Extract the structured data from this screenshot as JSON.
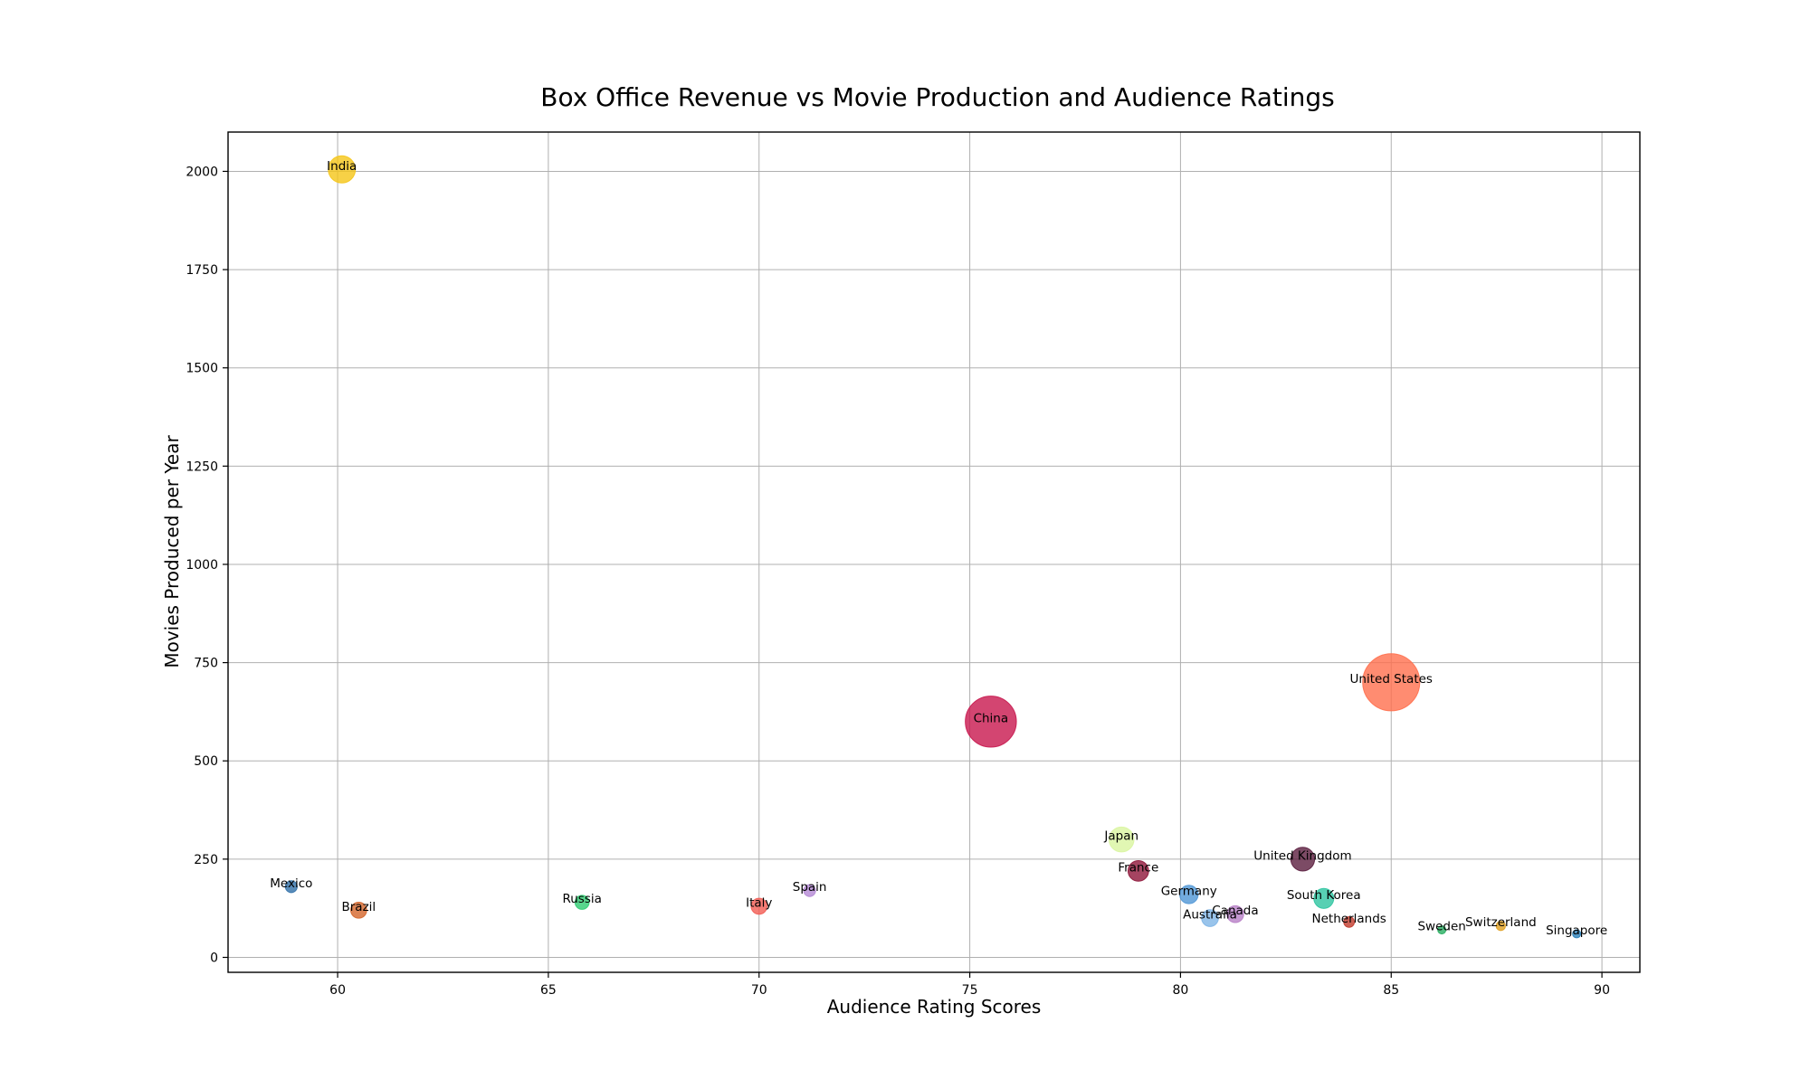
{
  "chart_data": {
    "type": "scatter",
    "title": "Box Office Revenue vs Movie Production and Audience Ratings",
    "xlabel": "Audience Rating Scores",
    "ylabel": "Movies Produced per Year",
    "xlim": [
      57.4,
      90.9
    ],
    "ylim": [
      -38,
      2100
    ],
    "xticks": [
      60,
      65,
      70,
      75,
      80,
      85,
      90
    ],
    "yticks": [
      0,
      250,
      500,
      750,
      1000,
      1250,
      1500,
      1750,
      2000
    ],
    "grid": true,
    "points": [
      {
        "label": "India",
        "x": 60.1,
        "y": 2005,
        "size_value": 2.6,
        "color": "#f5c518"
      },
      {
        "label": "United States",
        "x": 85.0,
        "y": 700,
        "size_value": 11.5,
        "color": "#ff6f4d"
      },
      {
        "label": "China",
        "x": 75.5,
        "y": 600,
        "size_value": 9.2,
        "color": "#c8174e"
      },
      {
        "label": "Japan",
        "x": 78.6,
        "y": 300,
        "size_value": 2.2,
        "color": "#d9f5a0"
      },
      {
        "label": "United Kingdom",
        "x": 82.9,
        "y": 250,
        "size_value": 2.0,
        "color": "#5b1e3f"
      },
      {
        "label": "France",
        "x": 79.0,
        "y": 220,
        "size_value": 1.5,
        "color": "#8e1539"
      },
      {
        "label": "Mexico",
        "x": 58.9,
        "y": 180,
        "size_value": 0.5,
        "color": "#2f6fa8"
      },
      {
        "label": "Spain",
        "x": 71.2,
        "y": 170,
        "size_value": 0.5,
        "color": "#b488d4"
      },
      {
        "label": "Germany",
        "x": 80.2,
        "y": 160,
        "size_value": 1.2,
        "color": "#4f96d6"
      },
      {
        "label": "South Korea",
        "x": 83.4,
        "y": 150,
        "size_value": 1.4,
        "color": "#2ec4a0"
      },
      {
        "label": "Russia",
        "x": 65.8,
        "y": 140,
        "size_value": 0.7,
        "color": "#2ecc71"
      },
      {
        "label": "Italy",
        "x": 70.0,
        "y": 130,
        "size_value": 0.9,
        "color": "#f25c54"
      },
      {
        "label": "Brazil",
        "x": 60.5,
        "y": 120,
        "size_value": 0.9,
        "color": "#d4652a"
      },
      {
        "label": "Canada",
        "x": 81.3,
        "y": 110,
        "size_value": 1.0,
        "color": "#b87fc7"
      },
      {
        "label": "Australia",
        "x": 80.7,
        "y": 100,
        "size_value": 1.0,
        "color": "#7fb5e6"
      },
      {
        "label": "Netherlands",
        "x": 84.0,
        "y": 90,
        "size_value": 0.4,
        "color": "#c0392b"
      },
      {
        "label": "Switzerland",
        "x": 87.6,
        "y": 80,
        "size_value": 0.3,
        "color": "#e0a020"
      },
      {
        "label": "Sweden",
        "x": 86.2,
        "y": 70,
        "size_value": 0.2,
        "color": "#27ae60"
      },
      {
        "label": "Singapore",
        "x": 89.4,
        "y": 60,
        "size_value": 0.1,
        "color": "#2980b9"
      }
    ]
  }
}
